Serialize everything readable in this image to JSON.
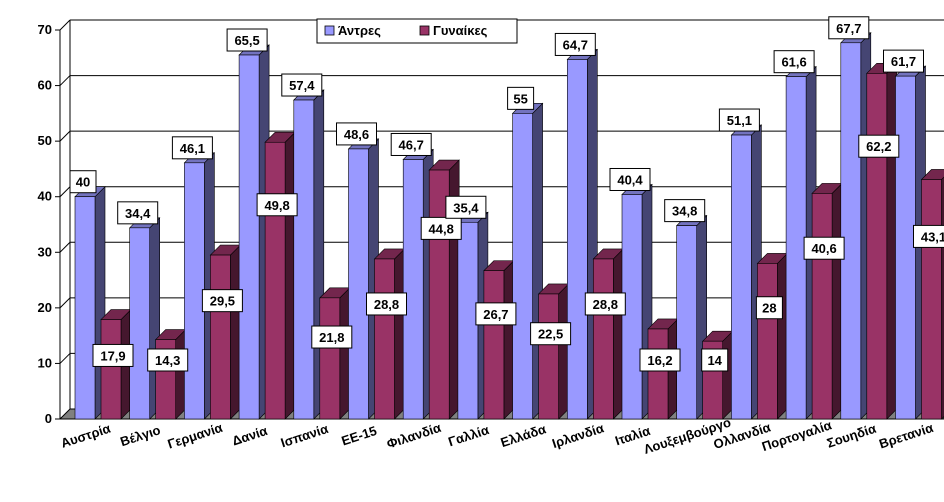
{
  "chart_data": {
    "type": "bar",
    "categories": [
      "Αυστρία",
      "Βέλγιο",
      "Γερμανία",
      "Δανία",
      "Ισπανία",
      "ΕΕ-15",
      "Φιλανδία",
      "Γαλλία",
      "Ελλάδα",
      "Ιρλανδία",
      "Ιταλία",
      "Λουξεμβούργο",
      "Ολλανδία",
      "Πορτογαλία",
      "Σουηδία",
      "Βρετανία"
    ],
    "series": [
      {
        "name": "Άντρες",
        "values": [
          40,
          34.4,
          46.1,
          65.5,
          57.4,
          48.6,
          46.7,
          35.4,
          55,
          64.7,
          40.4,
          34.8,
          51.1,
          61.6,
          67.7,
          61.7
        ],
        "labels": [
          "40",
          "34,4",
          "46,1",
          "65,5",
          "57,4",
          "48,6",
          "46,7",
          "35,4",
          "55",
          "64,7",
          "40,4",
          "34,8",
          "51,1",
          "61,6",
          "67,7",
          "61,7"
        ],
        "color": "#9999ff"
      },
      {
        "name": "Γυναίκες",
        "values": [
          17.9,
          14.3,
          29.5,
          49.8,
          21.8,
          28.8,
          44.8,
          26.7,
          22.5,
          28.8,
          16.2,
          14,
          28,
          40.6,
          62.2,
          43.1
        ],
        "labels": [
          "17,9",
          "14,3",
          "29,5",
          "49,8",
          "21,8",
          "28,8",
          "44,8",
          "26,7",
          "22,5",
          "28,8",
          "16,2",
          "14",
          "28",
          "40,6",
          "62,2",
          "43,1"
        ],
        "color": "#993366"
      }
    ],
    "yticks": [
      "0",
      "10",
      "20",
      "30",
      "40",
      "50",
      "60",
      "70"
    ],
    "ylim": [
      0,
      70
    ],
    "grid": true,
    "legend_position": "top-center",
    "floor_color": "#808080"
  }
}
